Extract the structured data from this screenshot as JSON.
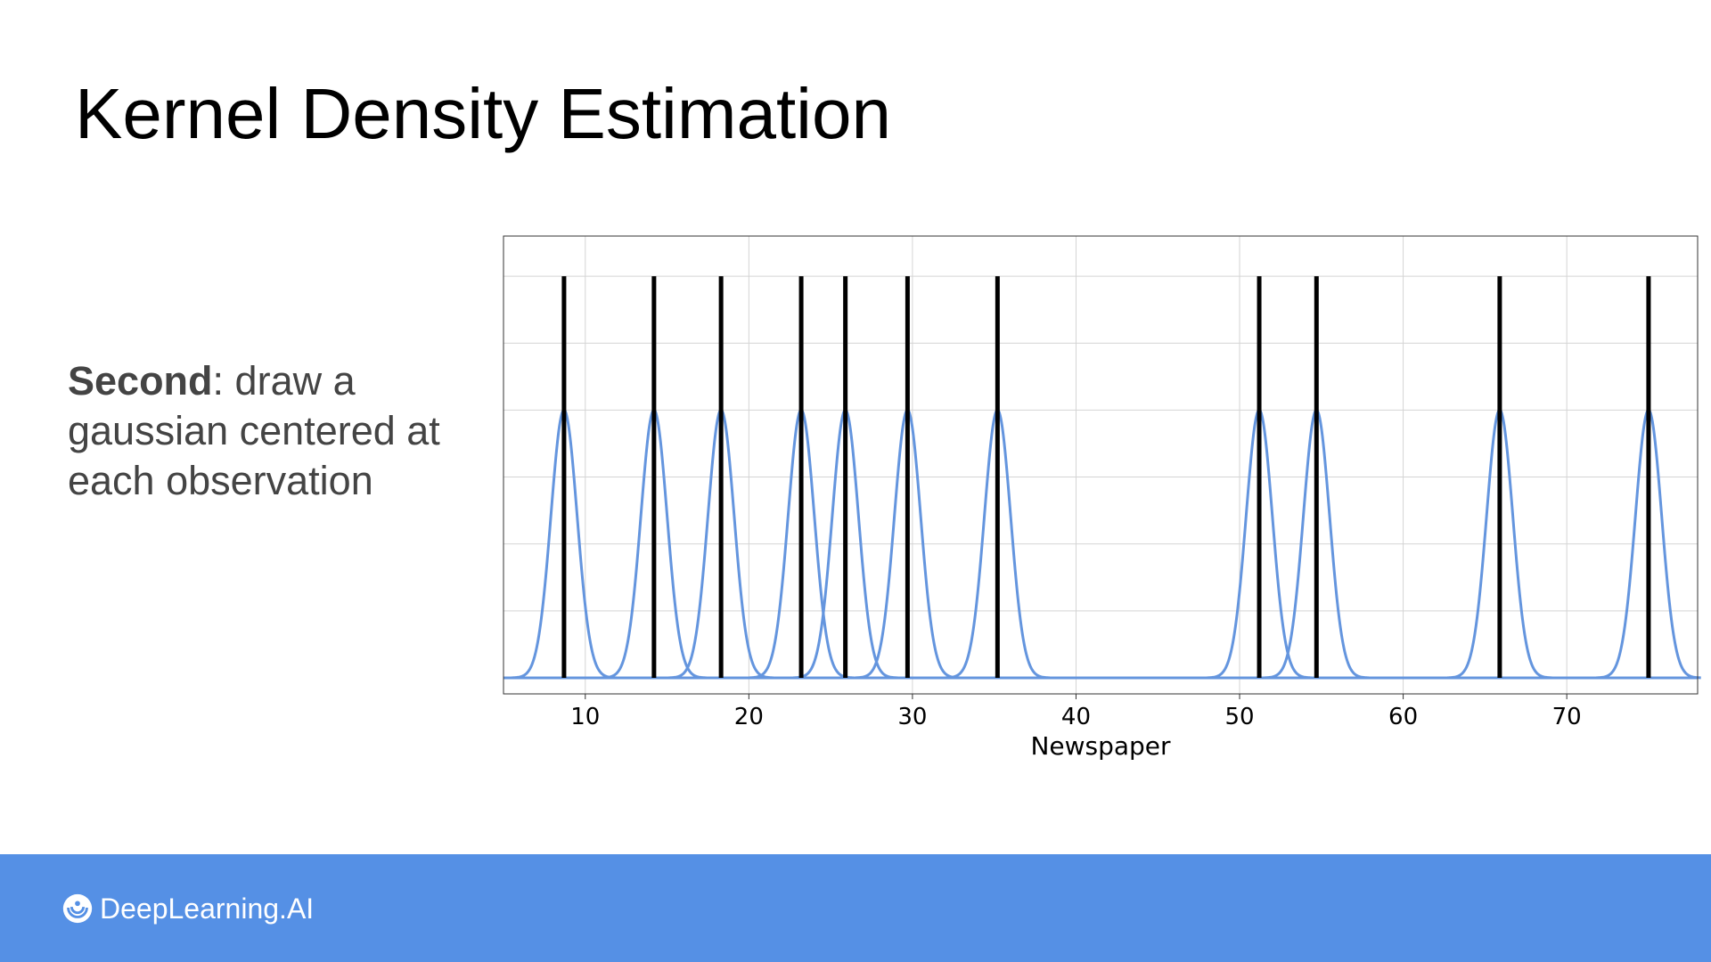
{
  "slide": {
    "title": "Kernel Density Estimation",
    "bullet_strong": "Second",
    "bullet_rest": ": draw a gaussian centered at each observation"
  },
  "footer": {
    "brand": "DeepLearning.AI",
    "logo_icon": "deeplearning-ai-logo-icon",
    "background_color": "#5590e5"
  },
  "chart_data": {
    "type": "line",
    "xlabel": "Newspaper",
    "ylabel": "",
    "xlim": [
      5,
      78
    ],
    "ylim": [
      -0.06,
      1.65
    ],
    "xticks": [
      10,
      20,
      30,
      40,
      50,
      60,
      70
    ],
    "grid": true,
    "observations": [
      8.7,
      14.2,
      18.3,
      23.2,
      25.9,
      29.7,
      35.2,
      51.2,
      54.7,
      65.9,
      75.0
    ],
    "observation_line_height": 1.5,
    "kernel": {
      "type": "gaussian",
      "peak": 1.0,
      "sigma": 0.8
    },
    "colors": {
      "kernel": "#6495de",
      "observation": "#000000",
      "grid": "#d4d4d4"
    }
  }
}
